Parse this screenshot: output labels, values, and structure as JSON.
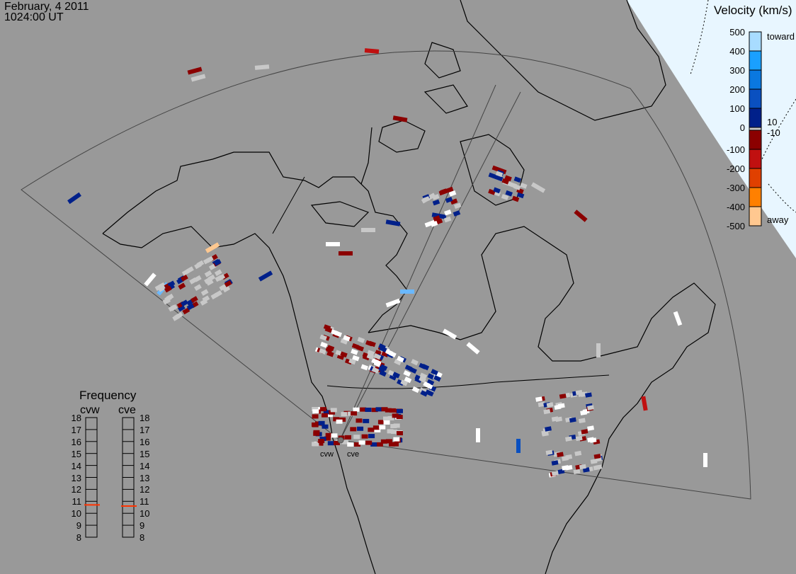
{
  "header": {
    "date": "February, 4 2011",
    "time": "1024:00 UT"
  },
  "colorbar": {
    "title": "Velocity (km/s)",
    "ticks": [
      "500",
      "400",
      "300",
      "200",
      "100",
      "0",
      "-100",
      "-200",
      "-300",
      "-400",
      "-500"
    ],
    "toward_label": "toward",
    "away_label": "away",
    "pos_threshold": "10",
    "neg_threshold": "-10",
    "colors": [
      "#a8dcff",
      "#1aa0ff",
      "#0a78e0",
      "#0a50c0",
      "#00208a",
      "#c8c8c8",
      "#8b0000",
      "#c01010",
      "#e04000",
      "#ff8000",
      "#ffc890"
    ]
  },
  "frequency": {
    "title": "Frequency",
    "radars": [
      {
        "name": "cvw",
        "value_mhz": 10.7
      },
      {
        "name": "cve",
        "value_mhz": 10.6
      }
    ],
    "ticks": [
      "18",
      "17",
      "16",
      "15",
      "14",
      "13",
      "12",
      "11",
      "10",
      "9",
      "8"
    ],
    "marker_color": "#ff3300"
  },
  "map": {
    "radar_labels": [
      "cvw",
      "cve"
    ],
    "background": "#999999",
    "daylight_color": "#e8f6ff",
    "coast_color": "#000000"
  }
}
